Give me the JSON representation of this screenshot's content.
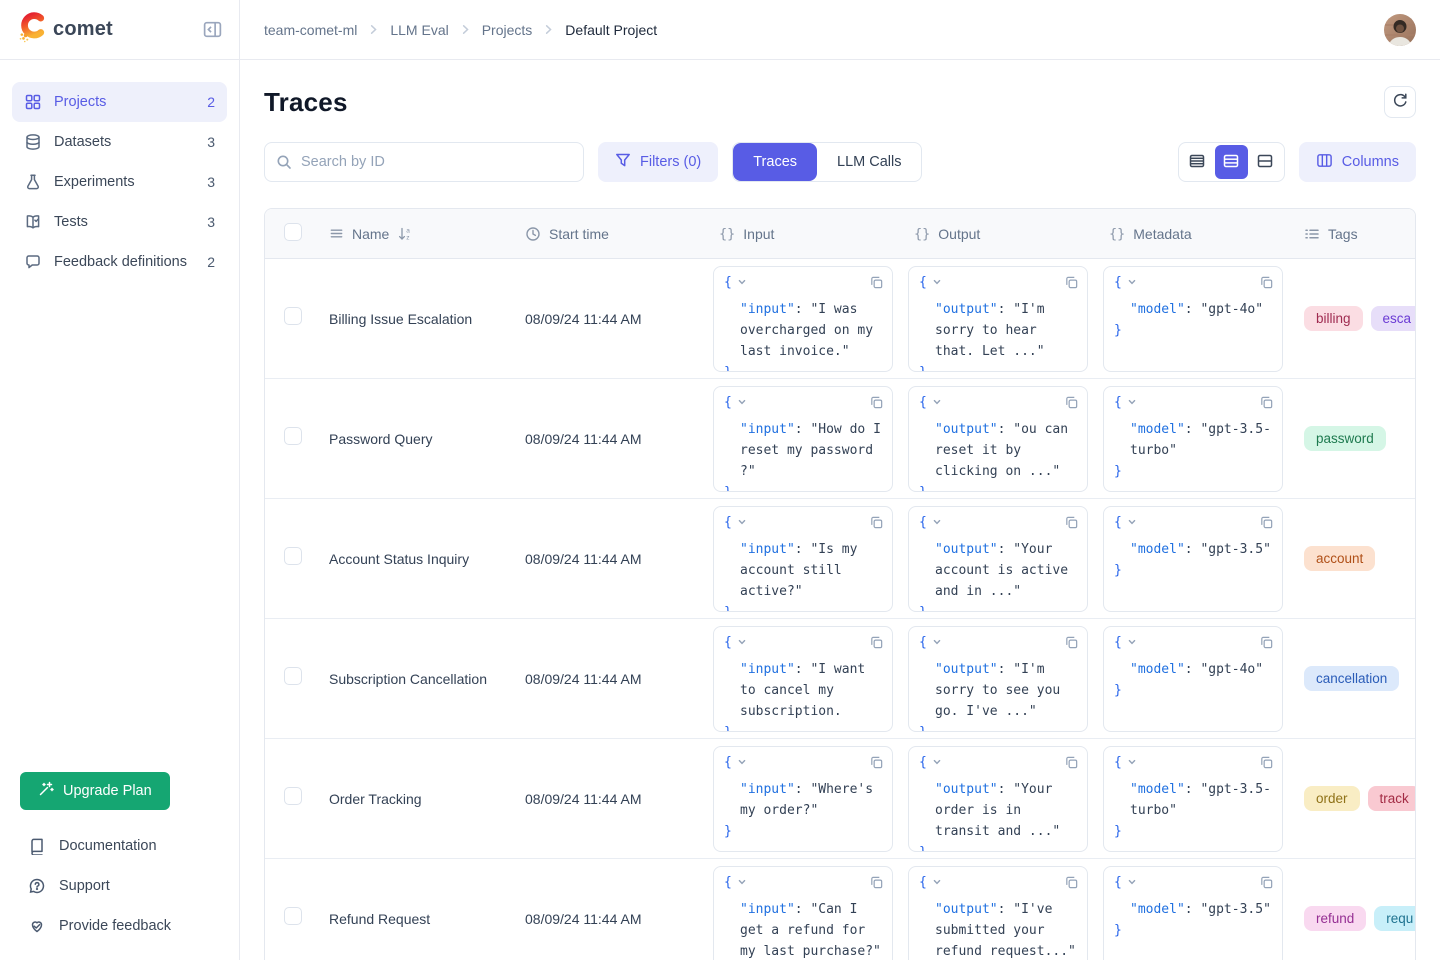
{
  "brand": {
    "name": "comet",
    "logo_icon": "comet-logo-icon"
  },
  "colors": {
    "accent": "#585ce5",
    "accent_soft": "#eef0fc",
    "green": "#15a672",
    "json_key": "#2070e0",
    "brace": "#2563eb",
    "tag_palette": {
      "red": {
        "bg": "#fbdde3",
        "text": "#9f2b50"
      },
      "purple": {
        "bg": "#e7def9",
        "text": "#6a3bd4"
      },
      "green": {
        "bg": "#d5f6e6",
        "text": "#1e7a4f"
      },
      "orange": {
        "bg": "#fce1cf",
        "text": "#b05018"
      },
      "blue": {
        "bg": "#dce9fb",
        "text": "#2a5cb8"
      },
      "yellow": {
        "bg": "#f9edc4",
        "text": "#8f7218"
      },
      "rose": {
        "bg": "#f9c9d1",
        "text": "#a32b44"
      },
      "pink": {
        "bg": "#f9d9f0",
        "text": "#952f93"
      },
      "cyan": {
        "bg": "#c8eff9",
        "text": "#1f7390"
      }
    }
  },
  "sidebar": {
    "collapse_icon": "collapse-sidebar-icon",
    "nav": [
      {
        "label": "Projects",
        "count": "2",
        "icon": "grid-icon",
        "active": true
      },
      {
        "label": "Datasets",
        "count": "3",
        "icon": "database-icon",
        "active": false
      },
      {
        "label": "Experiments",
        "count": "3",
        "icon": "flask-icon",
        "active": false
      },
      {
        "label": "Tests",
        "count": "3",
        "icon": "book-check-icon",
        "active": false
      },
      {
        "label": "Feedback definitions",
        "count": "2",
        "icon": "chat-bubble-icon",
        "active": false
      }
    ],
    "upgrade_label": "Upgrade Plan",
    "upgrade_icon": "wand-icon",
    "footer_links": [
      {
        "label": "Documentation",
        "icon": "doc-icon"
      },
      {
        "label": "Support",
        "icon": "support-icon"
      },
      {
        "label": "Provide feedback",
        "icon": "heart-feedback-icon"
      }
    ]
  },
  "breadcrumb": [
    "team-comet-ml",
    "LLM Eval",
    "Projects",
    "Default Project"
  ],
  "page": {
    "title": "Traces",
    "refresh_icon": "refresh-icon",
    "search_placeholder": "Search by ID",
    "search_icon": "search-icon",
    "filters_label": "Filters (0)",
    "filters_icon": "funnel-icon",
    "tabs": [
      {
        "label": "Traces",
        "active": true
      },
      {
        "label": "LLM Calls",
        "active": false
      }
    ],
    "density_options": [
      {
        "name": "small",
        "icon": "rows-dense-icon",
        "active": false
      },
      {
        "name": "medium",
        "icon": "rows-medium-icon",
        "active": true
      },
      {
        "name": "large",
        "icon": "rows-split-icon",
        "active": false
      }
    ],
    "columns_label": "Columns",
    "columns_icon": "columns-icon"
  },
  "table": {
    "headers": {
      "name": "Name",
      "start_time": "Start time",
      "input": "Input",
      "output": "Output",
      "metadata": "Metadata",
      "tags": "Tags"
    },
    "header_icons": {
      "name": [
        "drag-icon",
        "sort-az-icon"
      ],
      "start_time": "clock-icon",
      "json_columns": "curly-braces-icon",
      "tags": "list-icon"
    },
    "rows": [
      {
        "name": "Billing Issue Escalation",
        "start_time": "08/09/24 11:44 AM",
        "input_lines": [
          "\"input\": \"I was",
          "overcharged on my",
          "last invoice.\""
        ],
        "output_lines": [
          "\"output\": \"I'm",
          "sorry to hear",
          "that. Let ...\""
        ],
        "metadata_lines": [
          "\"model\": \"gpt-4o\""
        ],
        "tags": [
          {
            "label": "billing",
            "color": "red"
          },
          {
            "label": "esca",
            "color": "purple"
          }
        ]
      },
      {
        "name": "Password Query",
        "start_time": "08/09/24 11:44 AM",
        "input_lines": [
          "\"input\": \"How do I",
          "reset my password",
          "?\""
        ],
        "output_lines": [
          "\"output\": \"ou can",
          "reset it by",
          "clicking on ...\""
        ],
        "metadata_lines": [
          "\"model\": \"gpt-3.5-",
          "turbo\""
        ],
        "tags": [
          {
            "label": "password",
            "color": "green"
          }
        ]
      },
      {
        "name": "Account Status Inquiry",
        "start_time": "08/09/24 11:44 AM",
        "input_lines": [
          "\"input\": \"Is my",
          "account still",
          "active?\""
        ],
        "output_lines": [
          "\"output\": \"Your",
          "account is active",
          "and in ...\""
        ],
        "metadata_lines": [
          "\"model\": \"gpt-3.5\""
        ],
        "tags": [
          {
            "label": "account",
            "color": "orange"
          }
        ]
      },
      {
        "name": "Subscription Cancellation",
        "start_time": "08/09/24 11:44 AM",
        "input_lines": [
          "\"input\": \"I want",
          "to cancel my",
          "subscription."
        ],
        "output_lines": [
          "\"output\": \"I'm",
          "sorry to see you",
          "go. I've ...\""
        ],
        "metadata_lines": [
          "\"model\": \"gpt-4o\""
        ],
        "tags": [
          {
            "label": "cancellation",
            "color": "blue"
          }
        ]
      },
      {
        "name": "Order Tracking",
        "start_time": "08/09/24 11:44 AM",
        "input_lines": [
          "\"input\": \"Where's",
          "my order?\""
        ],
        "output_lines": [
          "\"output\": \"Your",
          "order is in",
          "transit and ...\""
        ],
        "metadata_lines": [
          "\"model\": \"gpt-3.5-",
          "turbo\""
        ],
        "tags": [
          {
            "label": "order",
            "color": "yellow"
          },
          {
            "label": "track",
            "color": "rose"
          }
        ]
      },
      {
        "name": "Refund Request",
        "start_time": "08/09/24 11:44 AM",
        "input_lines": [
          "\"input\": \"Can I",
          "get a refund for",
          "my last purchase?\""
        ],
        "output_lines": [
          "\"output\": \"I've",
          "submitted your",
          "refund request...\""
        ],
        "metadata_lines": [
          "\"model\": \"gpt-3.5\""
        ],
        "tags": [
          {
            "label": "refund",
            "color": "pink"
          },
          {
            "label": "requ",
            "color": "cyan"
          }
        ]
      }
    ]
  }
}
